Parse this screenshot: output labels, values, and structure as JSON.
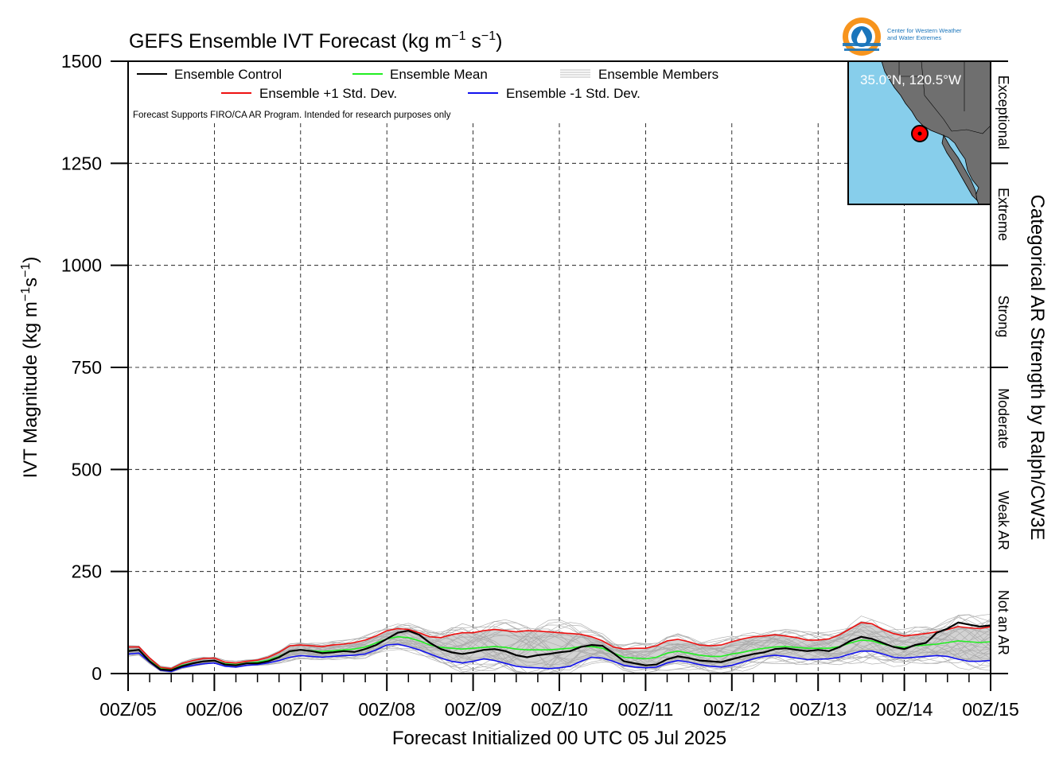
{
  "chart_data": {
    "type": "line",
    "title": "GEFS Ensemble IVT Forecast (kg m",
    "title_sup1": "−1",
    "title_mid": " s",
    "title_sup2": "−1",
    "title_end": ")",
    "ylabel": "IVT Magnitude (kg m",
    "ylabel_sup1": "−1",
    "ylabel_mid": "s",
    "ylabel_sup2": "−1",
    "ylabel_end": ")",
    "xlabel": "Forecast Initialized 00 UTC 05 Jul 2025",
    "right_label": "Categorical AR Strength by Ralph/CW3E",
    "ylim": [
      0,
      1500
    ],
    "xlim": [
      0,
      240
    ],
    "yticks": [
      0,
      250,
      500,
      750,
      1000,
      1250,
      1500
    ],
    "ytick_labels": [
      "0",
      "250",
      "500",
      "750",
      "1000",
      "1250",
      "1500"
    ],
    "xticks": [
      0,
      24,
      48,
      72,
      96,
      120,
      144,
      168,
      192,
      216,
      240
    ],
    "xtick_labels": [
      "00Z/05",
      "00Z/06",
      "00Z/07",
      "00Z/08",
      "00Z/09",
      "00Z/10",
      "00Z/11",
      "00Z/12",
      "00Z/13",
      "00Z/14",
      "00Z/15"
    ],
    "grid": true,
    "legend_position": "top-left",
    "note": "Forecast Supports FIRO/CA AR Program. Intended for research purposes only",
    "categories_ar": [
      {
        "label": "Not an AR",
        "range": [
          0,
          250
        ]
      },
      {
        "label": "Weak AR",
        "range": [
          250,
          500
        ]
      },
      {
        "label": "Moderate",
        "range": [
          500,
          750
        ]
      },
      {
        "label": "Strong",
        "range": [
          750,
          1000
        ]
      },
      {
        "label": "Extreme",
        "range": [
          1000,
          1250
        ]
      },
      {
        "label": "Exceptional",
        "range": [
          1250,
          1500
        ]
      }
    ],
    "x": [
      0,
      3,
      6,
      9,
      12,
      15,
      18,
      21,
      24,
      27,
      30,
      33,
      36,
      39,
      42,
      45,
      48,
      51,
      54,
      57,
      60,
      63,
      66,
      69,
      72,
      75,
      78,
      81,
      84,
      87,
      90,
      93,
      96,
      99,
      102,
      105,
      108,
      111,
      114,
      117,
      120,
      123,
      126,
      129,
      132,
      135,
      138,
      141,
      144,
      147,
      150,
      153,
      156,
      159,
      162,
      165,
      168,
      171,
      174,
      177,
      180,
      183,
      186,
      189,
      192,
      195,
      198,
      201,
      204,
      207,
      210,
      213,
      216,
      219,
      222,
      225,
      228,
      231,
      234,
      237,
      240
    ],
    "series": [
      {
        "name": "Ensemble Control",
        "color": "#000000",
        "values": [
          55,
          58,
          30,
          10,
          8,
          18,
          25,
          30,
          32,
          22,
          20,
          25,
          25,
          30,
          40,
          55,
          58,
          55,
          50,
          52,
          55,
          53,
          60,
          70,
          85,
          100,
          105,
          95,
          75,
          60,
          52,
          48,
          52,
          58,
          60,
          55,
          45,
          40,
          45,
          48,
          52,
          55,
          65,
          70,
          68,
          50,
          30,
          25,
          20,
          22,
          35,
          42,
          38,
          32,
          30,
          28,
          35,
          42,
          48,
          52,
          60,
          62,
          58,
          55,
          58,
          55,
          65,
          80,
          90,
          85,
          75,
          65,
          60,
          70,
          75,
          100,
          110,
          125,
          120,
          115,
          118
        ]
      },
      {
        "name": "Ensemble Mean",
        "color": "#22ee22",
        "values": [
          56,
          58,
          32,
          12,
          9,
          20,
          26,
          30,
          32,
          24,
          22,
          26,
          28,
          33,
          42,
          54,
          58,
          56,
          54,
          56,
          58,
          60,
          65,
          75,
          85,
          90,
          88,
          80,
          70,
          64,
          62,
          60,
          62,
          64,
          66,
          64,
          60,
          58,
          58,
          58,
          60,
          62,
          66,
          66,
          62,
          50,
          40,
          38,
          36,
          40,
          50,
          55,
          50,
          45,
          42,
          42,
          48,
          52,
          58,
          62,
          65,
          66,
          64,
          62,
          62,
          62,
          66,
          75,
          82,
          80,
          72,
          66,
          64,
          68,
          70,
          72,
          76,
          80,
          78,
          76,
          78
        ]
      },
      {
        "name": "Ensemble +1 Std. Dev.",
        "color": "#ee1111",
        "values": [
          65,
          65,
          38,
          15,
          12,
          25,
          32,
          37,
          38,
          28,
          26,
          30,
          33,
          40,
          52,
          68,
          70,
          68,
          66,
          70,
          72,
          76,
          82,
          92,
          105,
          110,
          108,
          100,
          90,
          88,
          95,
          100,
          100,
          105,
          108,
          105,
          102,
          105,
          104,
          102,
          100,
          98,
          96,
          90,
          80,
          65,
          60,
          62,
          62,
          68,
          80,
          84,
          78,
          70,
          68,
          70,
          78,
          85,
          90,
          92,
          95,
          92,
          88,
          82,
          82,
          85,
          95,
          110,
          125,
          122,
          108,
          98,
          92,
          95,
          98,
          102,
          108,
          115,
          112,
          110,
          115
        ]
      },
      {
        "name": "Ensemble -1 Std. Dev.",
        "color": "#1111ee",
        "values": [
          48,
          50,
          28,
          8,
          5,
          15,
          20,
          24,
          26,
          18,
          16,
          20,
          22,
          26,
          32,
          40,
          44,
          42,
          40,
          42,
          44,
          45,
          48,
          58,
          70,
          72,
          66,
          58,
          48,
          38,
          30,
          26,
          30,
          36,
          32,
          25,
          18,
          15,
          14,
          12,
          14,
          18,
          30,
          40,
          38,
          30,
          20,
          16,
          14,
          16,
          26,
          32,
          28,
          22,
          18,
          16,
          20,
          28,
          36,
          42,
          45,
          42,
          38,
          34,
          35,
          36,
          40,
          48,
          55,
          55,
          48,
          40,
          38,
          40,
          42,
          44,
          42,
          35,
          30,
          30,
          32
        ]
      }
    ],
    "members_label": "Ensemble Members",
    "member_color": "#aaaaaa",
    "band_color": "#d3d3d3",
    "inset_map": {
      "label": "35.0°N, 120.5°W",
      "ocean_color": "#87ceeb",
      "land_color": "#6f6f6f"
    },
    "logo": {
      "line1": "Center for Western Weather",
      "line2": "and Water Extremes",
      "ring_color": "#f7941d",
      "drop_color": "#1a75bb"
    }
  }
}
